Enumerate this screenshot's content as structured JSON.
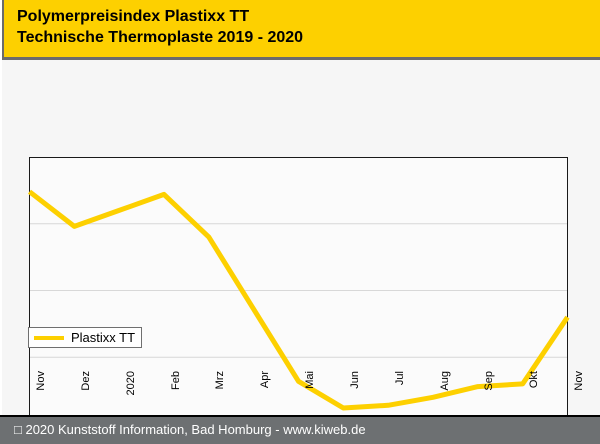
{
  "header": {
    "title_line1": "Polymerpreisindex Plastixx TT",
    "title_line2": "Technische Thermoplaste 2019 - 2020"
  },
  "footer": {
    "text": "□ 2020 Kunststoff Information, Bad Homburg - www.kiweb.de"
  },
  "colors": {
    "accent_yellow": "#FDD000",
    "header_border": "#6b6b6b",
    "body_bg": "#f6f6f6",
    "plot_bg": "#fbfbfb",
    "plot_frame": "#1a1a1a",
    "gridline": "#d8d8d8",
    "footer_bg": "#6d7072",
    "footer_text": "#ffffff"
  },
  "chart_data": {
    "type": "line",
    "title": "Polymerpreisindex Plastixx TT",
    "subtitle": "Technische Thermoplaste 2019 - 2020",
    "categories": [
      "Nov",
      "Dez",
      "2020",
      "Feb",
      "Mrz",
      "Apr",
      "Mai",
      "Jun",
      "Jul",
      "Aug",
      "Sep",
      "Okt",
      "Nov"
    ],
    "series": [
      {
        "name": "Plastixx TT",
        "values": [
          0.87,
          0.74,
          0.8,
          0.86,
          0.7,
          0.43,
          0.16,
          0.06,
          0.07,
          0.1,
          0.14,
          0.15,
          0.4
        ]
      }
    ],
    "ylabel": "",
    "xlabel": "",
    "ylim": [
      0,
      1
    ],
    "y_axis_labels_visible": false,
    "value_scale_note": "index values not labeled on axis; series values normalized 0-1 of plot height",
    "gridlines_y": [
      0.25,
      0.5,
      0.75
    ],
    "grid": "horizontal-only",
    "legend_position": "middle-left",
    "x_tick_label_rotation": -90
  }
}
